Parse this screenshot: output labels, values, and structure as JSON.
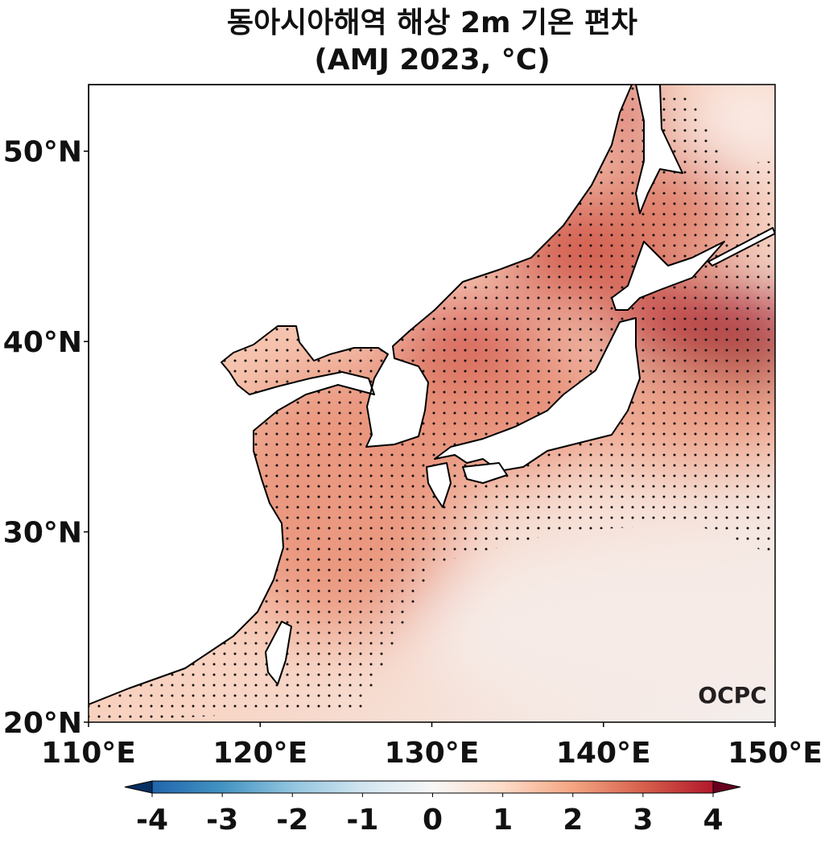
{
  "title": "동아시아해역 해상 2m 기온 편차",
  "subtitle": "(AMJ 2023, °C)",
  "map": {
    "xlim": [
      110,
      150
    ],
    "ylim": [
      20,
      53.5
    ],
    "xticks": [
      {
        "value": 110,
        "label": "110°E"
      },
      {
        "value": 120,
        "label": "120°E"
      },
      {
        "value": 130,
        "label": "130°E"
      },
      {
        "value": 140,
        "label": "140°E"
      },
      {
        "value": 150,
        "label": "150°E"
      }
    ],
    "yticks": [
      {
        "value": 20,
        "label": "20°N"
      },
      {
        "value": 30,
        "label": "30°N"
      },
      {
        "value": 40,
        "label": "40°N"
      },
      {
        "value": 50,
        "label": "50°N"
      }
    ]
  },
  "colorbar": {
    "lim": [
      -4,
      4
    ],
    "ticks": [
      -4,
      -3,
      -2,
      -1,
      0,
      1,
      2,
      3,
      4
    ],
    "colors": [
      "#053061",
      "#2166ac",
      "#4393c3",
      "#92c5de",
      "#d1e5f0",
      "#f7f7f7",
      "#fddbc7",
      "#f4a582",
      "#d6604d",
      "#b2182b",
      "#67001f"
    ]
  },
  "logo": "OCPC"
}
